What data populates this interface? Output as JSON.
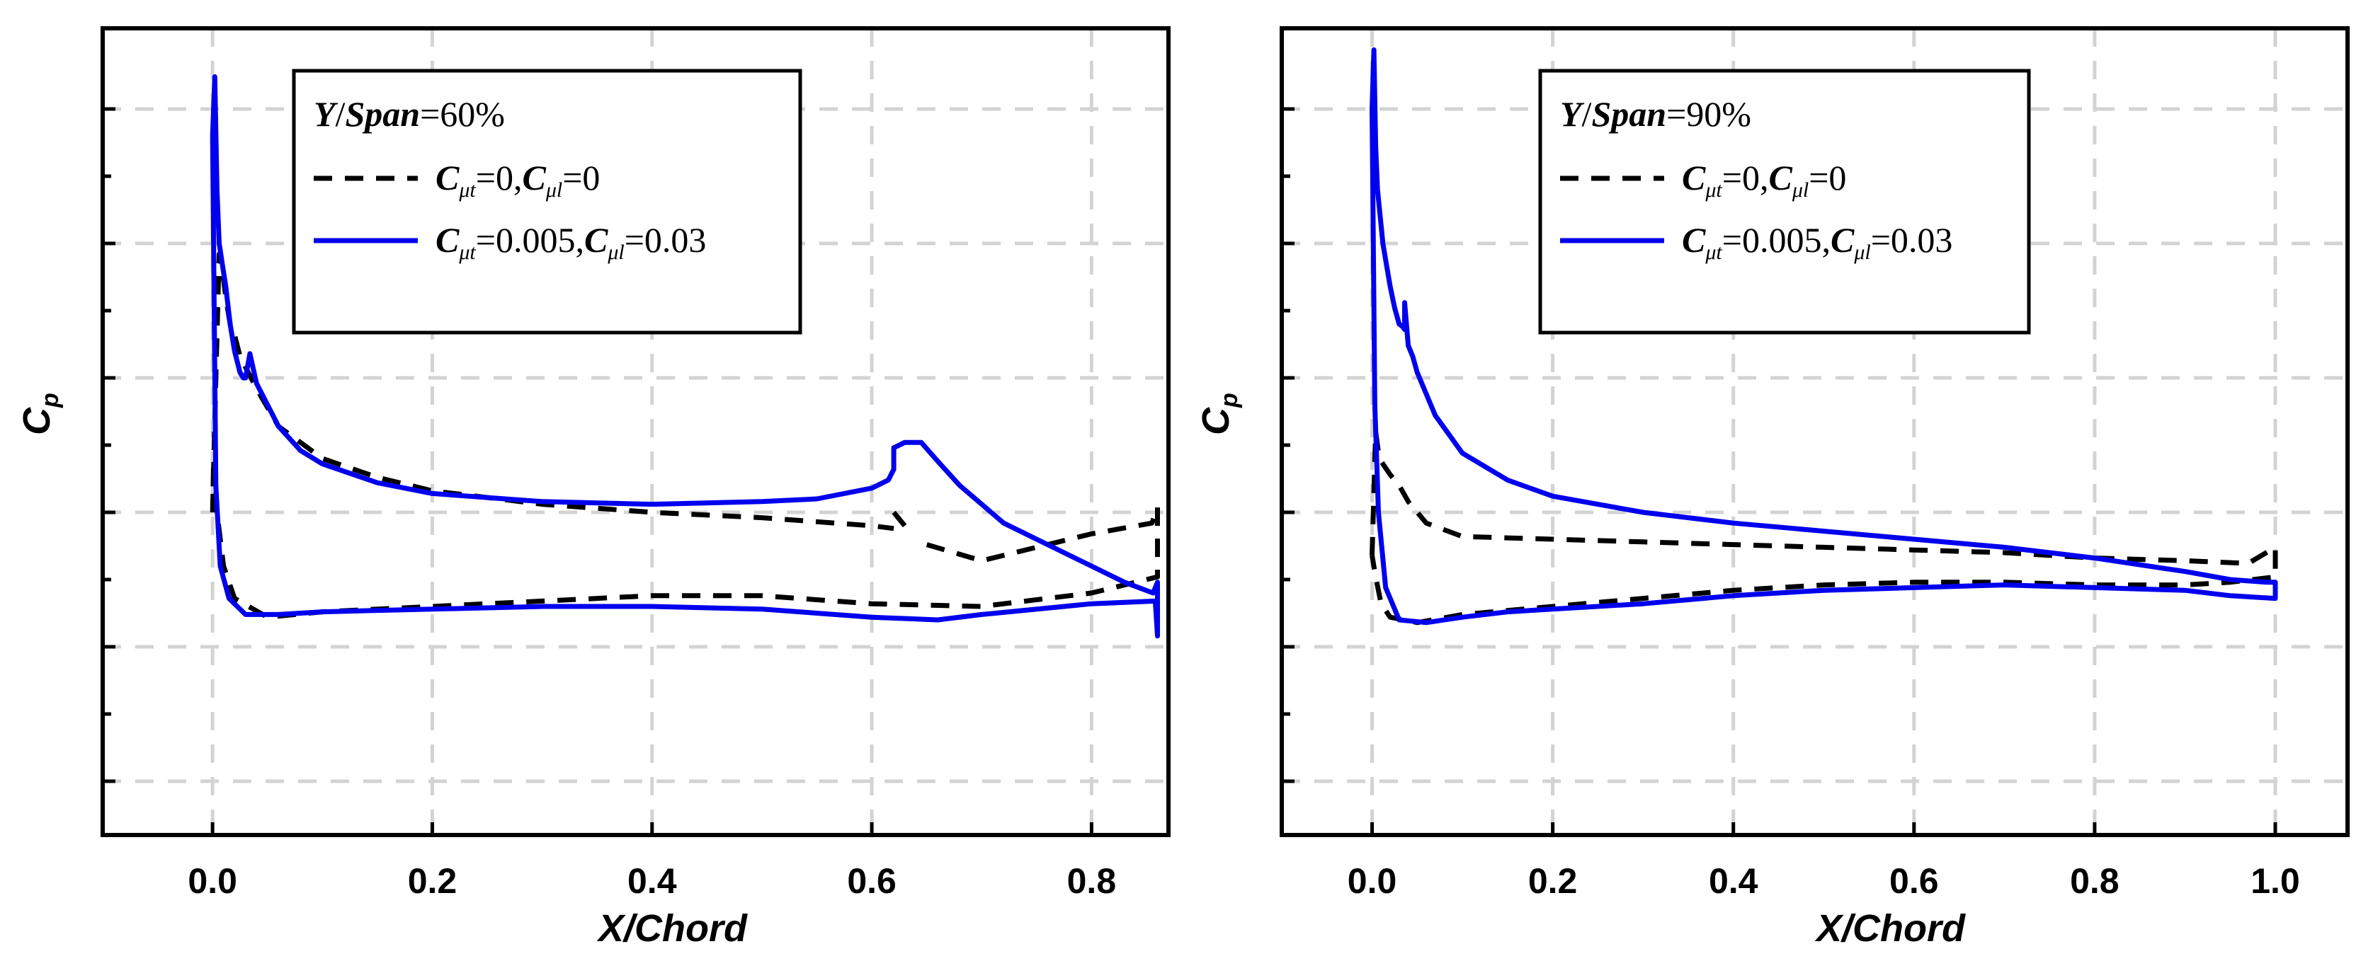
{
  "chart_data": [
    {
      "type": "line",
      "title": "Y/Span=60%",
      "xlabel": "X/Chord",
      "ylabel": "Cp",
      "xlim": [
        -0.1,
        0.87
      ],
      "ylim": [
        -8,
        7
      ],
      "xticks": [
        0.0,
        0.2,
        0.4,
        0.6,
        0.8
      ],
      "xtick_labels": [
        "0.0",
        "0.2",
        "0.4",
        "0.6",
        "0.8"
      ],
      "legend_heading": {
        "y": "Y",
        "span": "Span",
        "sep": "/",
        "value": "=60%"
      },
      "series": [
        {
          "name": "Cμt=0,Cμl=0",
          "label": {
            "c1": "C",
            "s1": "μt",
            "v1": "=0,",
            "c2": "C",
            "s2": "μl",
            "v2": "=0"
          },
          "color": "#000000",
          "dash": true,
          "x": [
            0.0,
            0.003,
            0.006,
            0.009,
            0.012,
            0.016,
            0.02,
            0.025,
            0.04,
            0.06,
            0.1,
            0.15,
            0.2,
            0.3,
            0.4,
            0.5,
            0.6,
            0.62,
            null,
            0.62,
            0.63,
            null,
            0.65,
            0.7,
            0.8,
            0.855,
            0.86,
            0.86,
            0.85,
            0.8,
            0.7,
            0.6,
            0.5,
            0.4,
            0.3,
            0.2,
            0.1,
            0.05,
            0.02,
            0.01,
            0.004,
            0.001,
            0.0
          ],
          "y": [
            -2,
            0.5,
            2.8,
            2.5,
            2.0,
            1.5,
            1.3,
            0.9,
            0.3,
            -0.4,
            -1.0,
            -1.35,
            -1.6,
            -1.85,
            -2.0,
            -2.1,
            -2.25,
            -2.3,
            null,
            -2.0,
            -2.25,
            null,
            -2.6,
            -2.9,
            -2.4,
            -2.2,
            -1.9,
            -3.2,
            -3.25,
            -3.5,
            -3.75,
            -3.7,
            -3.55,
            -3.55,
            -3.65,
            -3.75,
            -3.85,
            -3.95,
            -3.6,
            -3.0,
            -2.0,
            -1.0,
            -2
          ]
        },
        {
          "name": "Cμt=0.005,Cμl=0.03",
          "label": {
            "c1": "C",
            "s1": "μt",
            "v1": "=0.005,",
            "c2": "C",
            "s2": "μl",
            "v2": "=0.03"
          },
          "color": "#0000ee",
          "dash": false,
          "x": [
            0.0,
            0.002,
            0.004,
            0.006,
            0.009,
            0.012,
            0.016,
            0.02,
            0.025,
            0.028,
            0.03,
            0.034,
            0.04,
            0.06,
            0.08,
            0.1,
            0.15,
            0.2,
            0.3,
            0.4,
            0.5,
            0.55,
            0.6,
            0.615,
            0.62,
            0.62,
            0.625,
            0.63,
            0.645,
            0.66,
            0.68,
            0.72,
            0.76,
            0.8,
            0.83,
            0.856,
            0.86,
            0.86,
            0.858,
            0.8,
            0.7,
            0.66,
            0.6,
            0.5,
            0.4,
            0.3,
            0.2,
            0.1,
            0.06,
            0.03,
            0.015,
            0.007,
            0.003,
            0.0
          ],
          "y": [
            5.0,
            6.1,
            4.0,
            3.0,
            2.6,
            2.2,
            1.5,
            1.0,
            0.6,
            0.5,
            0.5,
            0.95,
            0.4,
            -0.4,
            -0.85,
            -1.1,
            -1.45,
            -1.65,
            -1.8,
            -1.85,
            -1.8,
            -1.75,
            -1.55,
            -1.4,
            -1.2,
            -0.8,
            -0.75,
            -0.7,
            -0.7,
            -1.05,
            -1.5,
            -2.2,
            -2.6,
            -3.0,
            -3.3,
            -3.5,
            -3.3,
            -4.3,
            -3.65,
            -3.7,
            -3.9,
            -4.0,
            -3.95,
            -3.8,
            -3.75,
            -3.75,
            -3.8,
            -3.85,
            -3.9,
            -3.9,
            -3.6,
            -3.0,
            -1.5,
            5.0
          ]
        }
      ]
    },
    {
      "type": "line",
      "title": "Y/Span=90%",
      "xlabel": "X/Chord",
      "ylabel": "Cp",
      "xlim": [
        -0.1,
        1.08
      ],
      "ylim": [
        -8,
        7
      ],
      "xticks": [
        0.0,
        0.2,
        0.4,
        0.6,
        0.8,
        1.0
      ],
      "xtick_labels": [
        "0.0",
        "0.2",
        "0.4",
        "0.6",
        "0.8",
        "1.0"
      ],
      "legend_heading": {
        "y": "Y",
        "span": "Span",
        "sep": "/",
        "value": "=90%"
      },
      "series": [
        {
          "name": "Cμt=0,Cμl=0",
          "label": {
            "c1": "C",
            "s1": "μt",
            "v1": "=0,",
            "c2": "C",
            "s2": "μl",
            "v2": "=0"
          },
          "color": "#000000",
          "dash": true,
          "x": [
            0.0,
            0.004,
            0.008,
            0.012,
            0.02,
            0.03,
            0.04,
            0.06,
            0.1,
            0.2,
            0.3,
            0.4,
            0.5,
            0.6,
            0.7,
            0.8,
            0.9,
            0.97,
            1.0,
            1.0,
            0.95,
            0.9,
            0.8,
            0.7,
            0.6,
            0.5,
            0.4,
            0.3,
            0.2,
            0.1,
            0.05,
            0.02,
            0.01,
            0.004,
            0.0
          ],
          "y": [
            -2.8,
            -0.5,
            -1.0,
            -1.1,
            -1.3,
            -1.5,
            -1.8,
            -2.2,
            -2.45,
            -2.5,
            -2.55,
            -2.6,
            -2.65,
            -2.7,
            -2.75,
            -2.85,
            -2.9,
            -2.95,
            -2.65,
            -3.2,
            -3.3,
            -3.35,
            -3.35,
            -3.3,
            -3.3,
            -3.35,
            -3.45,
            -3.6,
            -3.75,
            -3.9,
            -4.05,
            -3.95,
            -3.7,
            -3.2,
            -2.8
          ]
        },
        {
          "name": "Cμt=0.005,Cμl=0.03",
          "label": {
            "c1": "C",
            "s1": "μt",
            "v1": "=0.005,",
            "c2": "C",
            "s2": "μl",
            "v2": "=0.03"
          },
          "color": "#0000ee",
          "dash": false,
          "x": [
            0.0,
            0.002,
            0.004,
            0.006,
            0.009,
            0.012,
            0.016,
            0.02,
            0.025,
            0.03,
            0.034,
            0.036,
            0.036,
            0.04,
            0.045,
            0.05,
            0.07,
            0.1,
            0.15,
            0.2,
            0.3,
            0.4,
            0.5,
            0.6,
            0.7,
            0.8,
            0.9,
            0.95,
            0.99,
            1.0,
            1.0,
            0.95,
            0.9,
            0.8,
            0.7,
            0.6,
            0.5,
            0.4,
            0.3,
            0.2,
            0.15,
            0.1,
            0.06,
            0.03,
            0.015,
            0.007,
            0.003,
            0.0
          ],
          "y": [
            5.5,
            6.6,
            4.8,
            4.0,
            3.5,
            3.0,
            2.6,
            2.2,
            1.8,
            1.5,
            1.45,
            1.4,
            1.9,
            1.1,
            0.9,
            0.6,
            -0.2,
            -0.9,
            -1.4,
            -1.7,
            -2.0,
            -2.2,
            -2.35,
            -2.5,
            -2.65,
            -2.85,
            -3.1,
            -3.25,
            -3.3,
            -3.3,
            -3.6,
            -3.55,
            -3.45,
            -3.4,
            -3.35,
            -3.4,
            -3.45,
            -3.55,
            -3.7,
            -3.8,
            -3.85,
            -3.95,
            -4.05,
            -4.0,
            -3.4,
            -2.0,
            0.0,
            5.5
          ]
        }
      ]
    }
  ]
}
